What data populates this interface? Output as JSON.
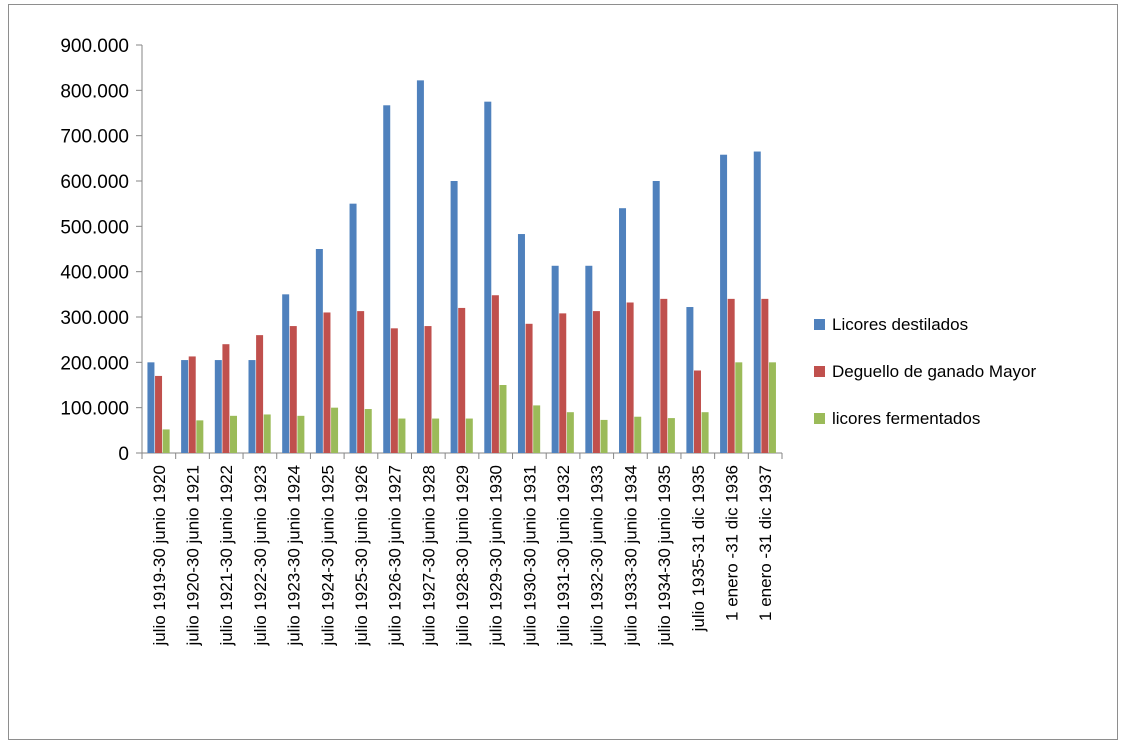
{
  "chart_data": {
    "type": "bar",
    "title": "",
    "xlabel": "",
    "ylabel": "",
    "ylim": [
      0,
      900000
    ],
    "ytick_step": 100000,
    "ytick_labels": [
      "0",
      "100.000",
      "200.000",
      "300.000",
      "400.000",
      "500.000",
      "600.000",
      "700.000",
      "800.000",
      "900.000"
    ],
    "grid": false,
    "legend_position": "right",
    "categories": [
      "julio 1919-30 junio 1920",
      "julio 1920-30 junio 1921",
      "julio 1921-30 junio 1922",
      "julio 1922-30 junio 1923",
      "julio 1923-30 junio 1924",
      "julio 1924-30 junio 1925",
      "julio 1925-30 junio 1926",
      "julio 1926-30 junio 1927",
      "julio 1927-30 junio 1928",
      "julio 1928-30 junio 1929",
      "julio 1929-30 junio 1930",
      "julio 1930-30 junio 1931",
      "julio 1931-30 junio 1932",
      "julio 1932-30 junio 1933",
      "julio 1933-30 junio 1934",
      "julio 1934-30 junio 1935",
      "julio 1935-31 dic 1935",
      "1 enero -31 dic 1936",
      "1 enero -31 dic 1937"
    ],
    "series": [
      {
        "name": "Licores destilados",
        "color": "#4f81bd",
        "values": [
          200000,
          205000,
          205000,
          205000,
          350000,
          450000,
          550000,
          767000,
          822000,
          600000,
          775000,
          483000,
          413000,
          413000,
          540000,
          600000,
          322000,
          658000,
          665000
        ]
      },
      {
        "name": "Deguello de ganado Mayor",
        "color": "#c0504d",
        "values": [
          170000,
          213000,
          240000,
          260000,
          280000,
          310000,
          313000,
          275000,
          280000,
          320000,
          348000,
          285000,
          308000,
          313000,
          332000,
          340000,
          182000,
          340000,
          340000
        ]
      },
      {
        "name": "licores fermentados",
        "color": "#9bbb59",
        "values": [
          52000,
          72000,
          82000,
          85000,
          82000,
          100000,
          97000,
          76000,
          76000,
          76000,
          150000,
          105000,
          90000,
          73000,
          80000,
          77000,
          90000,
          200000,
          200000
        ]
      }
    ]
  }
}
